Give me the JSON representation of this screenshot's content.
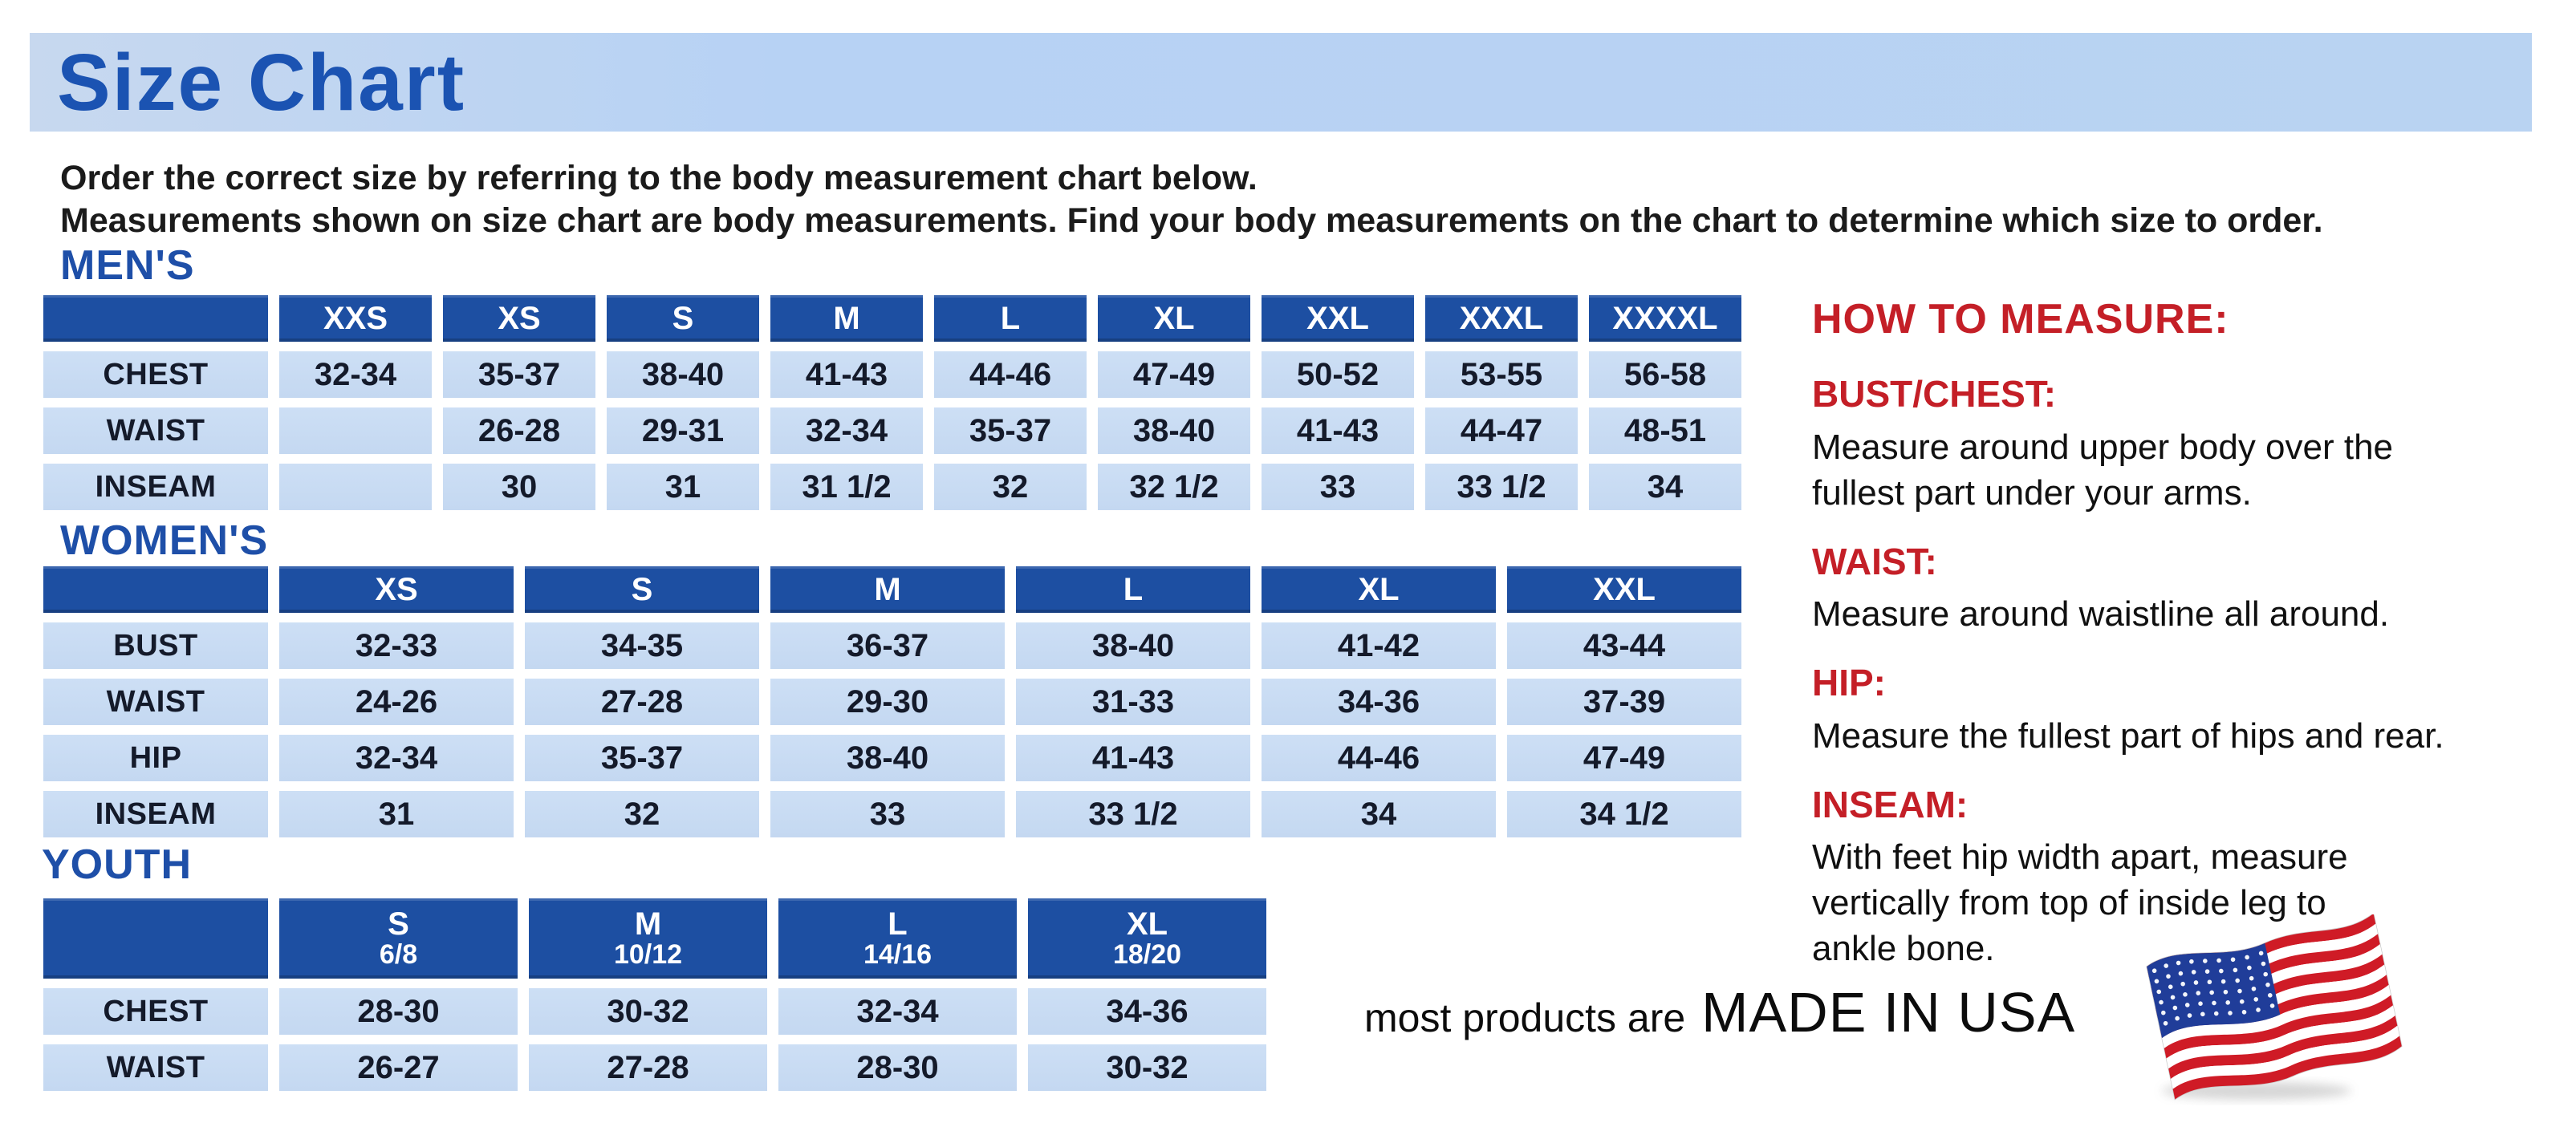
{
  "banner": {
    "title": "Size Chart"
  },
  "intro": {
    "line1": "Order the correct size by referring to the body measurement chart below.",
    "line2": "Measurements shown on size chart are body measurements.  Find your body measurements on the chart to determine which size to order."
  },
  "size_tables": {
    "mens": {
      "heading": "MEN'S",
      "column_headers": [
        "XXS",
        "XS",
        "S",
        "M",
        "L",
        "XL",
        "XXL",
        "XXXL",
        "XXXXL"
      ],
      "rows": [
        {
          "label": "CHEST",
          "values": [
            "32-34",
            "35-37",
            "38-40",
            "41-43",
            "44-46",
            "47-49",
            "50-52",
            "53-55",
            "56-58"
          ]
        },
        {
          "label": "WAIST",
          "values": [
            "",
            "26-28",
            "29-31",
            "32-34",
            "35-37",
            "38-40",
            "41-43",
            "44-47",
            "48-51"
          ]
        },
        {
          "label": "INSEAM",
          "values": [
            "",
            "30",
            "31",
            "31 1/2",
            "32",
            "32 1/2",
            "33",
            "33 1/2",
            "34"
          ]
        }
      ]
    },
    "womens": {
      "heading": "WOMEN'S",
      "column_headers": [
        "XS",
        "S",
        "M",
        "L",
        "XL",
        "XXL"
      ],
      "rows": [
        {
          "label": "BUST",
          "values": [
            "32-33",
            "34-35",
            "36-37",
            "38-40",
            "41-42",
            "43-44"
          ]
        },
        {
          "label": "WAIST",
          "values": [
            "24-26",
            "27-28",
            "29-30",
            "31-33",
            "34-36",
            "37-39"
          ]
        },
        {
          "label": "HIP",
          "values": [
            "32-34",
            "35-37",
            "38-40",
            "41-43",
            "44-46",
            "47-49"
          ]
        },
        {
          "label": "INSEAM",
          "values": [
            "31",
            "32",
            "33",
            "33 1/2",
            "34",
            "34 1/2"
          ]
        }
      ]
    },
    "youth": {
      "heading": "YOUTH",
      "column_headers": [
        {
          "size": "S",
          "age": "6/8"
        },
        {
          "size": "M",
          "age": "10/12"
        },
        {
          "size": "L",
          "age": "14/16"
        },
        {
          "size": "XL",
          "age": "18/20"
        }
      ],
      "rows": [
        {
          "label": "CHEST",
          "values": [
            "28-30",
            "30-32",
            "32-34",
            "34-36"
          ]
        },
        {
          "label": "WAIST",
          "values": [
            "26-27",
            "27-28",
            "28-30",
            "30-32"
          ]
        }
      ]
    }
  },
  "how_to_measure": {
    "heading": "HOW TO MEASURE:",
    "sections": [
      {
        "label": "BUST/CHEST:",
        "lines": [
          "Measure around upper body over the",
          "fullest part under your arms."
        ]
      },
      {
        "label": "WAIST:",
        "lines": [
          "Measure around waistline all around."
        ]
      },
      {
        "label": "HIP:",
        "lines": [
          "Measure the fullest part of hips and rear."
        ]
      },
      {
        "label": "INSEAM:",
        "lines": [
          "With feet hip width apart, measure",
          "vertically from top of inside leg to",
          "ankle bone."
        ]
      }
    ]
  },
  "footer": {
    "prefix": "most products are",
    "emphasis": "MADE IN USA",
    "flag_icon": "us-flag-icon"
  },
  "colors": {
    "banner_bg": "#b9d3f2",
    "title_blue": "#1b53b2",
    "heading_blue": "#1e4fa8",
    "table_header_bg": "#1d4fa2",
    "table_cell_bg": "#c6daf2",
    "cell_text": "#141a2a",
    "accent_red": "#c41f27",
    "flag_red": "#cf1b26",
    "flag_blue": "#203d99",
    "flag_white": "#ffffff"
  }
}
